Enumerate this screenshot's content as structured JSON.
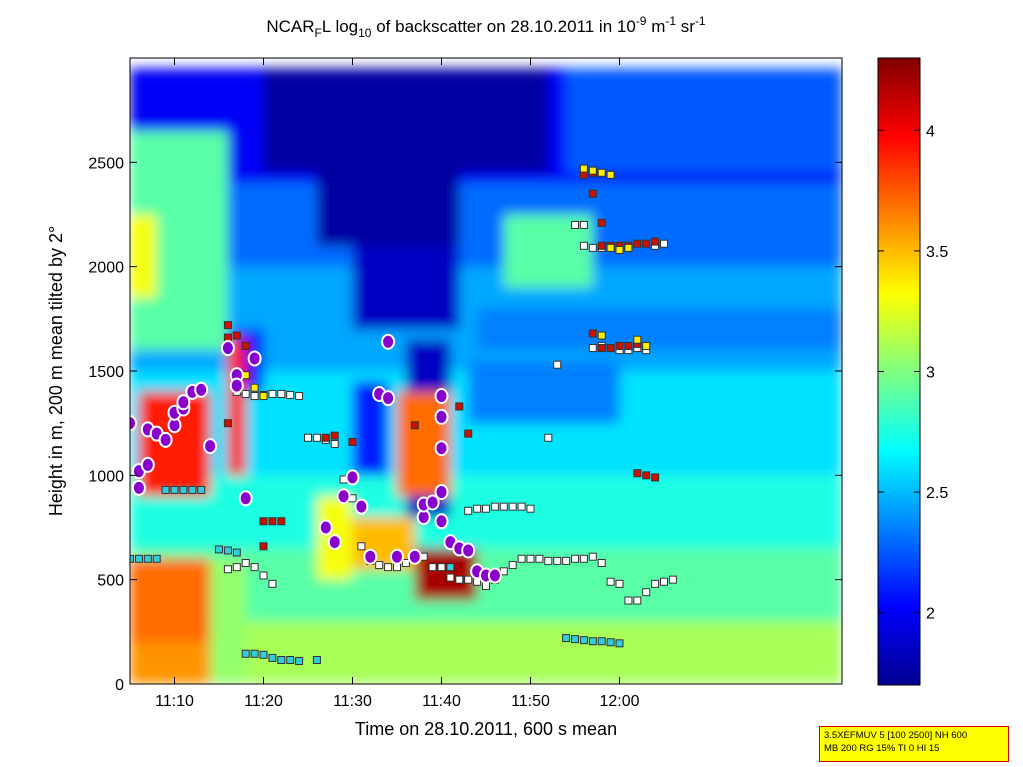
{
  "chart_data": {
    "type": "heatmap",
    "title_parts": {
      "prefix": "NCAR",
      "sub1": "F",
      "after_sub1": "L log",
      "sub2": "10",
      "middle": " of backscatter on 28.10.2011 in 10",
      "sup1": "-9",
      "unit1": " m",
      "sup2": "-1",
      "unit2": " sr",
      "sup3": "-1"
    },
    "xlabel": "Time on 28.10.2011, 600 s mean",
    "ylabel": "Height in m, 200 m mean tilted by 2°",
    "x_range_minutes": [
      665,
      745
    ],
    "x_ticks": [
      {
        "value": 670,
        "label": "11:10"
      },
      {
        "value": 680,
        "label": "11:20"
      },
      {
        "value": 690,
        "label": "11:30"
      },
      {
        "value": 700,
        "label": "11:40"
      },
      {
        "value": 710,
        "label": "11:50"
      },
      {
        "value": 720,
        "label": "12:00"
      }
    ],
    "y_range": [
      0,
      3000
    ],
    "y_ticks": [
      0,
      500,
      1000,
      1500,
      2000,
      2500
    ],
    "colorbar": {
      "range": [
        1.7,
        4.3
      ],
      "ticks": [
        2,
        2.5,
        3,
        3.5,
        4
      ],
      "colors": [
        "#00008f",
        "#0000ff",
        "#0080ff",
        "#00ffff",
        "#80ff80",
        "#ffff00",
        "#ff8000",
        "#ff0000",
        "#800000"
      ]
    },
    "regions": [
      {
        "x": [
          665,
          745
        ],
        "y": [
          2400,
          2950
        ],
        "v": 2.0
      },
      {
        "x": [
          665,
          745
        ],
        "y": [
          2000,
          2400
        ],
        "v": 2.3
      },
      {
        "x": [
          665,
          745
        ],
        "y": [
          1500,
          2000
        ],
        "v": 2.45
      },
      {
        "x": [
          665,
          745
        ],
        "y": [
          1000,
          1500
        ],
        "v": 2.6
      },
      {
        "x": [
          665,
          745
        ],
        "y": [
          650,
          1000
        ],
        "v": 2.75
      },
      {
        "x": [
          665,
          745
        ],
        "y": [
          300,
          650
        ],
        "v": 2.9
      },
      {
        "x": [
          665,
          745
        ],
        "y": [
          0,
          300
        ],
        "v": 3.1
      },
      {
        "x": [
          665,
          676
        ],
        "y": [
          1600,
          2650
        ],
        "v": 2.9
      },
      {
        "x": [
          665,
          668
        ],
        "y": [
          1850,
          2250
        ],
        "v": 3.3
      },
      {
        "x": [
          665,
          674
        ],
        "y": [
          0,
          600
        ],
        "v": 3.6
      },
      {
        "x": [
          665,
          674
        ],
        "y": [
          200,
          600
        ],
        "v": 3.7
      },
      {
        "x": [
          674,
          678
        ],
        "y": [
          0,
          600
        ],
        "v": 3.05
      },
      {
        "x": [
          680,
          712
        ],
        "y": [
          2450,
          2950
        ],
        "v": 1.75
      },
      {
        "x": [
          686,
          702
        ],
        "y": [
          2100,
          2450
        ],
        "v": 1.75
      },
      {
        "x": [
          690,
          702
        ],
        "y": [
          1700,
          2100
        ],
        "v": 1.85
      },
      {
        "x": [
          696,
          701
        ],
        "y": [
          800,
          1650
        ],
        "v": 1.85
      },
      {
        "x": [
          690,
          694
        ],
        "y": [
          1000,
          1450
        ],
        "v": 2.1
      },
      {
        "x": [
          676,
          680
        ],
        "y": [
          1400,
          1700
        ],
        "v": 2.05
      },
      {
        "x": [
          666,
          674
        ],
        "y": [
          900,
          1400
        ],
        "v": 3.9
      },
      {
        "x": [
          676,
          678
        ],
        "y": [
          1000,
          1650
        ],
        "v": 3.9
      },
      {
        "x": [
          695,
          701
        ],
        "y": [
          900,
          1400
        ],
        "v": 3.7
      },
      {
        "x": [
          697,
          704
        ],
        "y": [
          400,
          650
        ],
        "v": 4.2
      },
      {
        "x": [
          690,
          697
        ],
        "y": [
          550,
          800
        ],
        "v": 3.5
      },
      {
        "x": [
          686,
          690
        ],
        "y": [
          500,
          900
        ],
        "v": 3.3
      },
      {
        "x": [
          707,
          717
        ],
        "y": [
          1900,
          2250
        ],
        "v": 2.9
      },
      {
        "x": [
          714,
          745
        ],
        "y": [
          2450,
          2950
        ],
        "v": 2.25
      },
      {
        "x": [
          704,
          745
        ],
        "y": [
          1600,
          1800
        ],
        "v": 2.35
      },
      {
        "x": [
          703,
          720
        ],
        "y": [
          1250,
          1550
        ],
        "v": 2.35
      }
    ],
    "series": [
      {
        "marker": "square-cyan",
        "points": [
          [
            665,
            600
          ],
          [
            666,
            600
          ],
          [
            667,
            600
          ],
          [
            668,
            600
          ],
          [
            669,
            930
          ],
          [
            670,
            930
          ],
          [
            671,
            930
          ],
          [
            672,
            930
          ],
          [
            673,
            930
          ],
          [
            678,
            145
          ],
          [
            679,
            145
          ],
          [
            680,
            140
          ],
          [
            681,
            125
          ],
          [
            682,
            115
          ],
          [
            683,
            115
          ],
          [
            684,
            110
          ],
          [
            686,
            115
          ],
          [
            720,
            195
          ],
          [
            719,
            200
          ],
          [
            718,
            205
          ],
          [
            717,
            205
          ],
          [
            716,
            210
          ],
          [
            715,
            215
          ],
          [
            714,
            220
          ],
          [
            700,
            560
          ],
          [
            701,
            560
          ],
          [
            699,
            560
          ],
          [
            677,
            630
          ],
          [
            676,
            640
          ],
          [
            675,
            645
          ]
        ]
      },
      {
        "marker": "square-white",
        "points": [
          [
            679,
            1380
          ],
          [
            680,
            1385
          ],
          [
            681,
            1390
          ],
          [
            682,
            1390
          ],
          [
            683,
            1385
          ],
          [
            684,
            1380
          ],
          [
            677,
            1400
          ],
          [
            678,
            1390
          ],
          [
            685,
            1180
          ],
          [
            686,
            1180
          ],
          [
            687,
            1170
          ],
          [
            688,
            1150
          ],
          [
            689,
            980
          ],
          [
            690,
            890
          ],
          [
            691,
            660
          ],
          [
            692,
            590
          ],
          [
            693,
            570
          ],
          [
            694,
            560
          ],
          [
            695,
            560
          ],
          [
            696,
            580
          ],
          [
            697,
            600
          ],
          [
            698,
            610
          ],
          [
            699,
            560
          ],
          [
            700,
            560
          ],
          [
            701,
            510
          ],
          [
            702,
            500
          ],
          [
            703,
            500
          ],
          [
            704,
            490
          ],
          [
            705,
            470
          ],
          [
            706,
            500
          ],
          [
            707,
            540
          ],
          [
            708,
            570
          ],
          [
            709,
            600
          ],
          [
            710,
            600
          ],
          [
            711,
            600
          ],
          [
            712,
            590
          ],
          [
            713,
            590
          ],
          [
            714,
            590
          ],
          [
            715,
            600
          ],
          [
            716,
            600
          ],
          [
            717,
            610
          ],
          [
            718,
            580
          ],
          [
            719,
            490
          ],
          [
            720,
            480
          ],
          [
            721,
            400
          ],
          [
            722,
            400
          ],
          [
            723,
            440
          ],
          [
            724,
            480
          ],
          [
            725,
            490
          ],
          [
            726,
            500
          ],
          [
            703,
            830
          ],
          [
            704,
            840
          ],
          [
            705,
            840
          ],
          [
            706,
            850
          ],
          [
            707,
            850
          ],
          [
            708,
            850
          ],
          [
            709,
            850
          ],
          [
            710,
            840
          ],
          [
            712,
            1180
          ],
          [
            713,
            1530
          ],
          [
            717,
            1610
          ],
          [
            718,
            1620
          ],
          [
            719,
            1610
          ],
          [
            720,
            1600
          ],
          [
            721,
            1600
          ],
          [
            722,
            1610
          ],
          [
            723,
            1600
          ],
          [
            715,
            2200
          ],
          [
            716,
            2200
          ],
          [
            716,
            2100
          ],
          [
            717,
            2090
          ],
          [
            718,
            2090
          ],
          [
            719,
            2090
          ],
          [
            720,
            2090
          ],
          [
            724,
            2100
          ],
          [
            725,
            2110
          ],
          [
            678,
            580
          ],
          [
            679,
            560
          ],
          [
            680,
            520
          ],
          [
            681,
            480
          ],
          [
            677,
            560
          ],
          [
            676,
            550
          ]
        ]
      },
      {
        "marker": "square-red",
        "points": [
          [
            676,
            1660
          ],
          [
            677,
            1670
          ],
          [
            678,
            1620
          ],
          [
            676,
            1720
          ],
          [
            680,
            780
          ],
          [
            681,
            780
          ],
          [
            682,
            780
          ],
          [
            687,
            1180
          ],
          [
            688,
            1190
          ],
          [
            690,
            1160
          ],
          [
            702,
            1330
          ],
          [
            703,
            1200
          ],
          [
            716,
            2440
          ],
          [
            717,
            2450
          ],
          [
            717,
            2350
          ],
          [
            718,
            2210
          ],
          [
            718,
            2100
          ],
          [
            719,
            2100
          ],
          [
            720,
            2100
          ],
          [
            721,
            2100
          ],
          [
            722,
            2110
          ],
          [
            723,
            2110
          ],
          [
            724,
            2120
          ],
          [
            717,
            1680
          ],
          [
            718,
            1610
          ],
          [
            719,
            1610
          ],
          [
            720,
            1620
          ],
          [
            721,
            1620
          ],
          [
            722,
            1630
          ],
          [
            722,
            1010
          ],
          [
            723,
            1000
          ],
          [
            724,
            990
          ],
          [
            680,
            660
          ],
          [
            697,
            1240
          ],
          [
            676,
            1250
          ]
        ]
      },
      {
        "marker": "square-yellow",
        "points": [
          [
            678,
            1480
          ],
          [
            679,
            1420
          ],
          [
            680,
            1380
          ],
          [
            716,
            2470
          ],
          [
            717,
            2460
          ],
          [
            718,
            2450
          ],
          [
            719,
            2440
          ],
          [
            719,
            2090
          ],
          [
            720,
            2080
          ],
          [
            721,
            2090
          ],
          [
            722,
            1650
          ],
          [
            723,
            1620
          ],
          [
            718,
            1670
          ],
          [
            677,
            1470
          ]
        ]
      },
      {
        "marker": "circle-purple",
        "points": [
          [
            665,
            1250
          ],
          [
            666,
            1020
          ],
          [
            666,
            940
          ],
          [
            667,
            1050
          ],
          [
            667,
            1220
          ],
          [
            668,
            1200
          ],
          [
            669,
            1170
          ],
          [
            670,
            1240
          ],
          [
            670,
            1300
          ],
          [
            671,
            1320
          ],
          [
            671,
            1350
          ],
          [
            672,
            1400
          ],
          [
            673,
            1410
          ],
          [
            674,
            1140
          ],
          [
            676,
            1610
          ],
          [
            677,
            1480
          ],
          [
            677,
            1430
          ],
          [
            678,
            890
          ],
          [
            679,
            1560
          ],
          [
            687,
            750
          ],
          [
            688,
            680
          ],
          [
            689,
            900
          ],
          [
            690,
            990
          ],
          [
            691,
            850
          ],
          [
            692,
            610
          ],
          [
            693,
            1390
          ],
          [
            694,
            1370
          ],
          [
            694,
            1640
          ],
          [
            695,
            610
          ],
          [
            697,
            610
          ],
          [
            698,
            800
          ],
          [
            698,
            860
          ],
          [
            699,
            870
          ],
          [
            700,
            1380
          ],
          [
            700,
            1280
          ],
          [
            700,
            1130
          ],
          [
            700,
            920
          ],
          [
            700,
            780
          ],
          [
            701,
            680
          ],
          [
            702,
            650
          ],
          [
            703,
            640
          ],
          [
            704,
            540
          ],
          [
            705,
            520
          ],
          [
            706,
            520
          ]
        ]
      }
    ]
  },
  "info_box": {
    "line1": "3.5XEFMUV 5 [100 2500] NH 600",
    "line2": "MB 200 RG 15% TI 0 HI 15"
  }
}
